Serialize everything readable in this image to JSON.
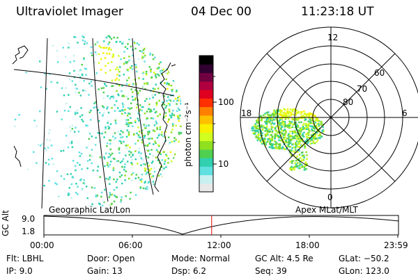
{
  "header": {
    "instrument": "Ultraviolet Imager",
    "date": "04 Dec 00",
    "time": "11:23:18 UT"
  },
  "colorbar": {
    "unit_label": "photon cm⁻²s⁻¹",
    "ticks": [
      "100",
      "10"
    ],
    "colors": [
      "#e8e8e8",
      "#c8f0f0",
      "#60e0e0",
      "#30d0b0",
      "#50d050",
      "#90e020",
      "#d0ff20",
      "#f8f000",
      "#ffc000",
      "#ff8000",
      "#ff3000",
      "#e00020",
      "#b00040",
      "#700040",
      "#300030",
      "#000000"
    ]
  },
  "left_panel": {
    "caption": "Geographic Lat/Lon"
  },
  "right_panel": {
    "caption": "Apex MLat/MLT",
    "mlt_labels": {
      "top": "12",
      "left": "18",
      "right": "6",
      "bottom": "0"
    },
    "mlat_labels": [
      "60",
      "70",
      "80"
    ]
  },
  "timeline": {
    "ylabel": "GC Alt",
    "ytick_top": "9.0",
    "ytick_bottom": "1.8",
    "xticks": [
      "00:00",
      "06:00",
      "12:00",
      "18:00",
      "23:59"
    ],
    "current_fraction": 0.474
  },
  "info": {
    "flt": "Flt: LBHL",
    "door": "Door: Open",
    "mode": "Mode: Normal",
    "gcalt": "GC Alt: 4.5 Re",
    "glat": "GLat: −50.2",
    "ip": "IP:  9.0",
    "gain": "Gain: 13",
    "dsp": "Dsp:    6.2",
    "seq": "Seq: 39",
    "glon": "GLon: 123.0"
  }
}
